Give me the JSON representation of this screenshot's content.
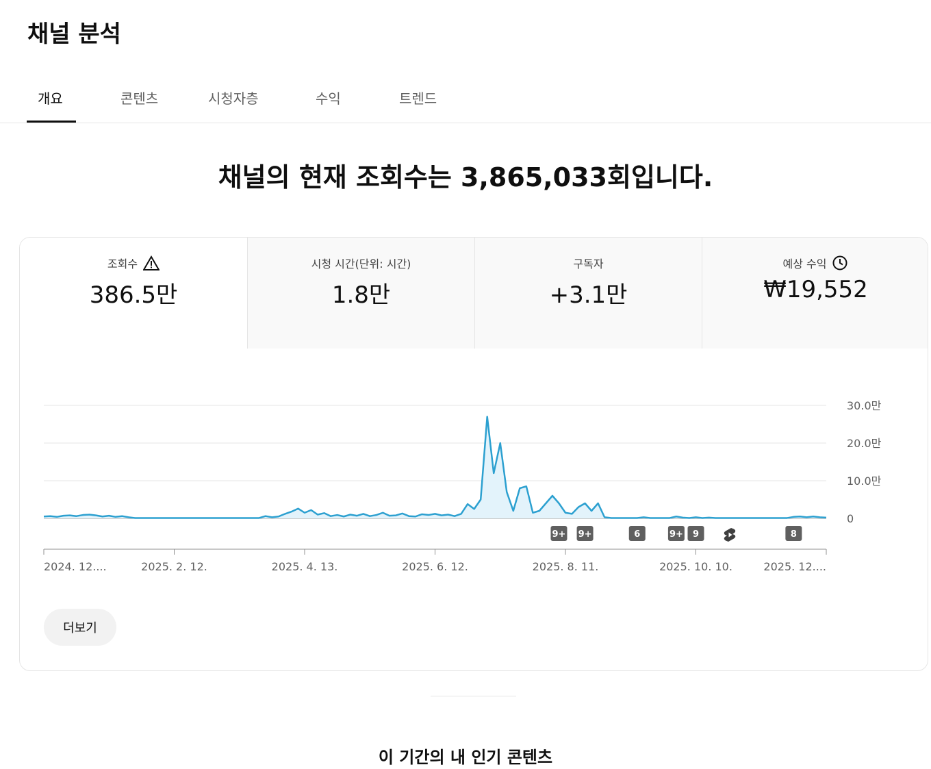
{
  "header": {
    "title": "채널 분석"
  },
  "tabs": [
    {
      "label": "개요",
      "selected": true
    },
    {
      "label": "콘텐츠"
    },
    {
      "label": "시청자층"
    },
    {
      "label": "수익"
    },
    {
      "label": "트렌드"
    }
  ],
  "headline": "채널의 현재 조회수는 3,865,033회입니다.",
  "metrics": [
    {
      "label": "조회수",
      "value": "386.5만"
    },
    {
      "label": "시청 시간(단위: 시간)",
      "value": "1.8만"
    },
    {
      "label": "구독자",
      "value": "+3.1만"
    },
    {
      "label": "예상 수익",
      "value": "₩19,552"
    }
  ],
  "chart_data": {
    "type": "line",
    "color": "#2ca0d0",
    "fill": "#e3f3fb",
    "grid": true,
    "categories": [
      "2024. 12....",
      null,
      null,
      null,
      null,
      null,
      null,
      null,
      null,
      null,
      null,
      null,
      null,
      null,
      null,
      null,
      null,
      null,
      null,
      null,
      "2025. 2. 12.",
      null,
      null,
      null,
      null,
      null,
      null,
      null,
      null,
      null,
      null,
      null,
      null,
      null,
      null,
      null,
      null,
      null,
      null,
      null,
      "2025. 4. 13.",
      null,
      null,
      null,
      null,
      null,
      null,
      null,
      null,
      null,
      null,
      null,
      null,
      null,
      null,
      null,
      null,
      null,
      null,
      null,
      "2025. 6. 12.",
      null,
      null,
      null,
      null,
      null,
      null,
      null,
      null,
      null,
      null,
      null,
      null,
      null,
      null,
      null,
      null,
      null,
      null,
      null,
      "2025. 8. 11.",
      null,
      null,
      null,
      null,
      null,
      null,
      null,
      null,
      null,
      null,
      null,
      null,
      null,
      null,
      null,
      null,
      null,
      null,
      null,
      "2025. 10. 10.",
      null,
      null,
      null,
      null,
      null,
      null,
      null,
      null,
      null,
      null,
      null,
      null,
      null,
      null,
      null,
      null,
      null,
      null,
      null,
      "2025. 12...."
    ],
    "values": [
      0.5,
      0.6,
      0.4,
      0.7,
      0.8,
      0.6,
      0.9,
      1.0,
      0.8,
      0.5,
      0.7,
      0.4,
      0.6,
      0.3,
      0.1,
      0.1,
      0.1,
      0.1,
      0.1,
      0.1,
      0.1,
      0.1,
      0.1,
      0.1,
      0.1,
      0.1,
      0.1,
      0.1,
      0.1,
      0.1,
      0.1,
      0.1,
      0.1,
      0.1,
      0.6,
      0.3,
      0.5,
      1.2,
      1.8,
      2.6,
      1.5,
      2.2,
      1.0,
      1.4,
      0.6,
      0.9,
      0.5,
      1.0,
      0.7,
      1.2,
      0.6,
      0.9,
      1.5,
      0.7,
      0.8,
      1.3,
      0.6,
      0.5,
      1.1,
      0.9,
      1.2,
      0.8,
      1.0,
      0.6,
      1.2,
      3.8,
      2.5,
      5.0,
      27,
      12,
      20,
      7,
      2,
      8,
      8.5,
      1.5,
      2,
      4,
      6,
      4,
      1.5,
      1.2,
      3,
      4,
      2,
      4,
      0.3,
      0.1,
      0.1,
      0.1,
      0.1,
      0.1,
      0.3,
      0.1,
      0.1,
      0.1,
      0.1,
      0.5,
      0.2,
      0.1,
      0.3,
      0.1,
      0.2,
      0.1,
      0.1,
      0.1,
      0.1,
      0.1,
      0.1,
      0.1,
      0.1,
      0.1,
      0.1,
      0.1,
      0.1,
      0.4,
      0.5,
      0.3,
      0.5,
      0.3,
      0.2
    ],
    "ylim": [
      0,
      30
    ],
    "yticks": [
      0,
      {
        "value": 10,
        "label": "10.0만"
      },
      {
        "value": 20,
        "label": "20.0만"
      },
      {
        "value": 30,
        "label": "30.0만"
      }
    ],
    "annotations": [
      {
        "at": 79,
        "label": "9+"
      },
      {
        "at": 83,
        "label": "9+"
      },
      {
        "at": 91,
        "label": "6"
      },
      {
        "at": 97,
        "label": "9+"
      },
      {
        "at": 100,
        "label": "9"
      },
      {
        "at": 115,
        "label": "8"
      }
    ]
  },
  "more_button": "더보기",
  "section_title": "이 기간의 내 인기 콘텐츠"
}
